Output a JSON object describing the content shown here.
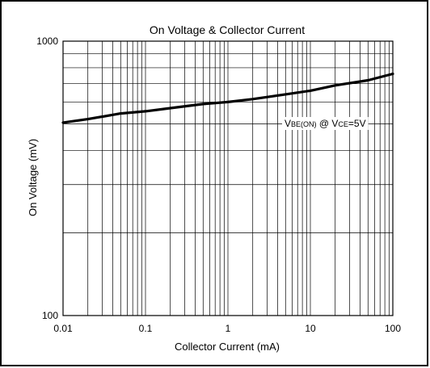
{
  "chart_data": {
    "type": "line",
    "title": "On Voltage & Collector Current",
    "xlabel": "Collector Current (mA)",
    "ylabel": "On Voltage (mV)",
    "x_scale": "log",
    "y_scale": "log",
    "xlim": [
      0.01,
      100
    ],
    "ylim": [
      100,
      1000
    ],
    "x_ticks": [
      "0.01",
      "0.1",
      "1",
      "10",
      "100"
    ],
    "y_ticks": [
      "100",
      "1000"
    ],
    "grid": true,
    "annotation": {
      "parts": [
        {
          "text": "V",
          "size": "big"
        },
        {
          "text": "BE(ON)",
          "size": "small"
        },
        {
          "text": " @ V",
          "size": "big"
        },
        {
          "text": "CE",
          "size": "small"
        },
        {
          "text": "=5V",
          "size": "big"
        }
      ]
    },
    "series": [
      {
        "x": [
          0.01,
          0.02,
          0.05,
          0.1,
          0.2,
          0.5,
          1,
          2,
          5,
          10,
          20,
          50,
          100
        ],
        "y": [
          505,
          520,
          545,
          555,
          570,
          590,
          600,
          615,
          640,
          660,
          690,
          720,
          760
        ]
      }
    ]
  }
}
